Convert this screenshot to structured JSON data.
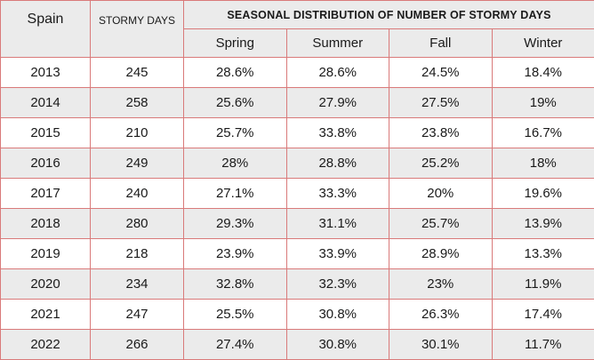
{
  "header": {
    "row_label": "Spain",
    "count_label": "STORMY DAYS",
    "group_label": "SEASONAL DISTRIBUTION OF NUMBER OF STORMY DAYS",
    "seasons": [
      "Spring",
      "Summer",
      "Fall",
      "Winter"
    ]
  },
  "rows": [
    {
      "year": "2013",
      "days": "245",
      "spring": "28.6%",
      "summer": "28.6%",
      "fall": "24.5%",
      "winter": "18.4%"
    },
    {
      "year": "2014",
      "days": "258",
      "spring": "25.6%",
      "summer": "27.9%",
      "fall": "27.5%",
      "winter": "19%"
    },
    {
      "year": "2015",
      "days": "210",
      "spring": "25.7%",
      "summer": "33.8%",
      "fall": "23.8%",
      "winter": "16.7%"
    },
    {
      "year": "2016",
      "days": "249",
      "spring": "28%",
      "summer": "28.8%",
      "fall": "25.2%",
      "winter": "18%"
    },
    {
      "year": "2017",
      "days": "240",
      "spring": "27.1%",
      "summer": "33.3%",
      "fall": "20%",
      "winter": "19.6%"
    },
    {
      "year": "2018",
      "days": "280",
      "spring": "29.3%",
      "summer": "31.1%",
      "fall": "25.7%",
      "winter": "13.9%"
    },
    {
      "year": "2019",
      "days": "218",
      "spring": "23.9%",
      "summer": "33.9%",
      "fall": "28.9%",
      "winter": "13.3%"
    },
    {
      "year": "2020",
      "days": "234",
      "spring": "32.8%",
      "summer": "32.3%",
      "fall": "23%",
      "winter": "11.9%"
    },
    {
      "year": "2021",
      "days": "247",
      "spring": "25.5%",
      "summer": "30.8%",
      "fall": "26.3%",
      "winter": "17.4%"
    },
    {
      "year": "2022",
      "days": "266",
      "spring": "27.4%",
      "summer": "30.8%",
      "fall": "30.1%",
      "winter": "11.7%"
    }
  ],
  "colors": {
    "border": "#d97a7a",
    "band": "#ebebeb"
  }
}
